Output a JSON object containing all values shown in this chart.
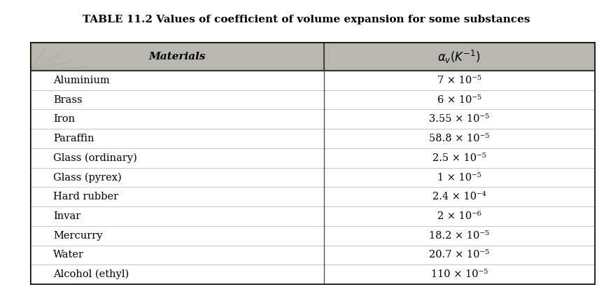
{
  "title": "TABLE 11.2 Values of coefficient of volume expansion for some substances",
  "col1_header": "Materials",
  "col2_header": "αᵥ(K⁻¹)",
  "rows": [
    [
      "Aluminium",
      "7 × 10⁻⁵"
    ],
    [
      "Brass",
      "6 × 10⁻⁵"
    ],
    [
      "Iron",
      "3.55 × 10⁻⁵"
    ],
    [
      "Paraffin",
      "58.8 × 10⁻⁵"
    ],
    [
      "Glass (ordinary)",
      "2.5 × 10⁻⁵"
    ],
    [
      "Glass (pyrex)",
      "1 × 10⁻⁵"
    ],
    [
      "Hard rubber",
      "2.4 × 10⁻⁴"
    ],
    [
      "Invar",
      "2 × 10⁻⁶"
    ],
    [
      "Mercurry",
      "18.2 × 10⁻⁵"
    ],
    [
      "Water",
      "20.7 × 10⁻⁵"
    ],
    [
      "Alcohol (ethyl)",
      "110 × 10⁻⁵"
    ]
  ],
  "header_bg": "#c8c8c8",
  "header_stripe_bg": "#a0a0a0",
  "row_bg_white": "#ffffff",
  "outer_border_color": "#000000",
  "title_fontsize": 11,
  "header_fontsize": 11,
  "row_fontsize": 10.5,
  "fig_bg": "#ffffff",
  "col_split": 0.52
}
